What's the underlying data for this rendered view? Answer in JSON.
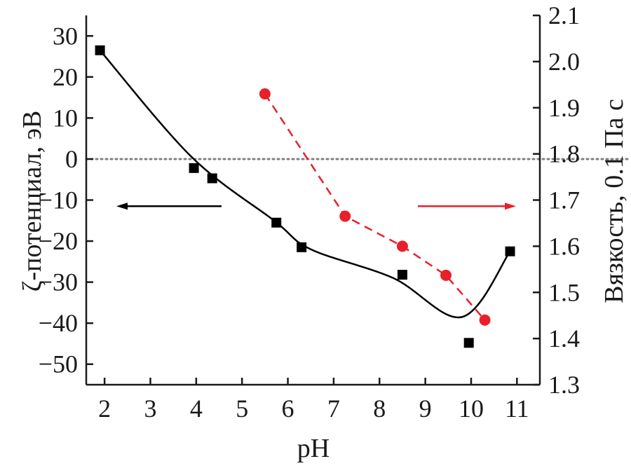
{
  "chart_data": {
    "type": "line",
    "title": "",
    "xlabel": "pH",
    "ylabel_left": "ζ-потенциал, эВ",
    "ylabel_right": "Вязкость, 0.1 Па с",
    "xlim": [
      1.6,
      11.5
    ],
    "ylim_left": [
      -55,
      35
    ],
    "ylim_right": [
      1.3,
      2.1
    ],
    "x_ticks": [
      "2",
      "3",
      "4",
      "5",
      "6",
      "7",
      "8",
      "9",
      "10",
      "11"
    ],
    "y_left_ticks": [
      "30",
      "20",
      "10",
      "0",
      "−10",
      "−20",
      "−30",
      "−40",
      "−50"
    ],
    "y_right_ticks": [
      "2.1",
      "2.0",
      "1.9",
      "1.8",
      "1.7",
      "1.6",
      "1.5",
      "1.4",
      "1.3"
    ],
    "reference_line_y_left": 0,
    "series": [
      {
        "axis": "left",
        "marker": "square",
        "color": "#000000",
        "x": [
          1.9,
          3.95,
          4.35,
          5.75,
          6.3,
          8.5,
          9.95,
          10.85
        ],
        "y": [
          26.5,
          -2.2,
          -4.7,
          -15.5,
          -21.5,
          -28.2,
          -44.8,
          -22.5
        ]
      },
      {
        "axis": "right",
        "marker": "circle",
        "line_style": "dashed",
        "color": "#e8202a",
        "x": [
          5.5,
          7.25,
          8.5,
          9.45,
          10.3
        ],
        "y": [
          1.93,
          1.665,
          1.6,
          1.537,
          1.44
        ]
      }
    ],
    "annotations": [
      {
        "type": "arrow",
        "direction": "left",
        "color": "#000000",
        "refers_to": "left-axis"
      },
      {
        "type": "arrow",
        "direction": "right",
        "color": "#e8202a",
        "refers_to": "right-axis"
      }
    ]
  }
}
